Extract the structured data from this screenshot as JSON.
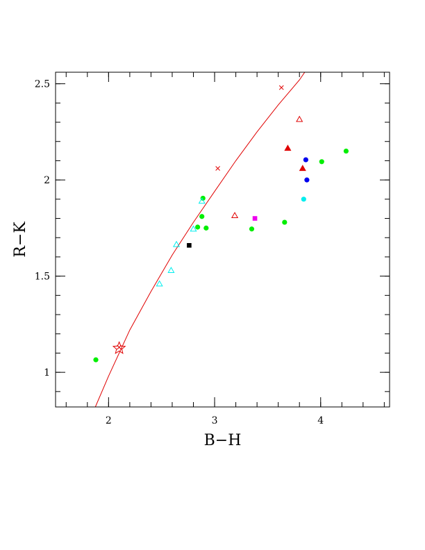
{
  "chart_data": {
    "type": "scatter",
    "xlabel": "B−H",
    "ylabel": "R−K",
    "xlim": [
      1.5,
      4.65
    ],
    "ylim": [
      0.82,
      2.56
    ],
    "x_ticks": [
      2,
      3,
      4
    ],
    "y_ticks": [
      1,
      1.5,
      2,
      2.5
    ],
    "x_tick_labels": [
      "2",
      "3",
      "4"
    ],
    "y_tick_labels": [
      "1",
      "1.5",
      "2",
      "2.5"
    ],
    "x_minor_step": 0.2,
    "y_minor_step": 0.1,
    "grid": false,
    "legend": "none",
    "curve": {
      "color": "#e00000",
      "points": [
        [
          1.875,
          0.82
        ],
        [
          2.0,
          0.98
        ],
        [
          2.2,
          1.22
        ],
        [
          2.4,
          1.42
        ],
        [
          2.6,
          1.61
        ],
        [
          2.8,
          1.78
        ],
        [
          3.0,
          1.94
        ],
        [
          3.2,
          2.1
        ],
        [
          3.4,
          2.25
        ],
        [
          3.6,
          2.39
        ],
        [
          3.8,
          2.52
        ],
        [
          3.85,
          2.56
        ]
      ],
      "markers": [
        [
          2.1,
          1.13
        ],
        [
          3.03,
          2.06
        ],
        [
          3.63,
          2.48
        ]
      ]
    },
    "star": {
      "x": 2.1,
      "y": 1.125,
      "color": "#e00000"
    },
    "series": [
      {
        "marker": "circle",
        "color": "#00ee00",
        "points": [
          [
            1.88,
            1.065
          ],
          [
            2.84,
            1.755
          ],
          [
            2.88,
            1.81
          ],
          [
            2.89,
            1.905
          ],
          [
            2.92,
            1.75
          ],
          [
            3.35,
            1.745
          ],
          [
            3.66,
            1.78
          ],
          [
            4.01,
            2.095
          ],
          [
            4.24,
            2.15
          ]
        ]
      },
      {
        "marker": "triangle-open",
        "color": "#00eeee",
        "points": [
          [
            2.48,
            1.46
          ],
          [
            2.59,
            1.53
          ],
          [
            2.64,
            1.665
          ],
          [
            2.8,
            1.745
          ],
          [
            2.88,
            1.89
          ]
        ]
      },
      {
        "marker": "circle",
        "color": "#00eeee",
        "points": [
          [
            3.84,
            1.9
          ]
        ]
      },
      {
        "marker": "square",
        "color": "#000000",
        "points": [
          [
            2.76,
            1.66
          ]
        ]
      },
      {
        "marker": "square",
        "color": "#ee00ee",
        "points": [
          [
            3.38,
            1.8
          ]
        ]
      },
      {
        "marker": "triangle-open",
        "color": "#e00000",
        "points": [
          [
            3.19,
            1.815
          ],
          [
            3.8,
            2.315
          ]
        ]
      },
      {
        "marker": "triangle-filled",
        "color": "#e00000",
        "points": [
          [
            3.69,
            2.165
          ],
          [
            3.83,
            2.06
          ]
        ]
      },
      {
        "marker": "circle",
        "color": "#0000ee",
        "points": [
          [
            3.86,
            2.105
          ],
          [
            3.87,
            2.0
          ]
        ]
      }
    ]
  }
}
